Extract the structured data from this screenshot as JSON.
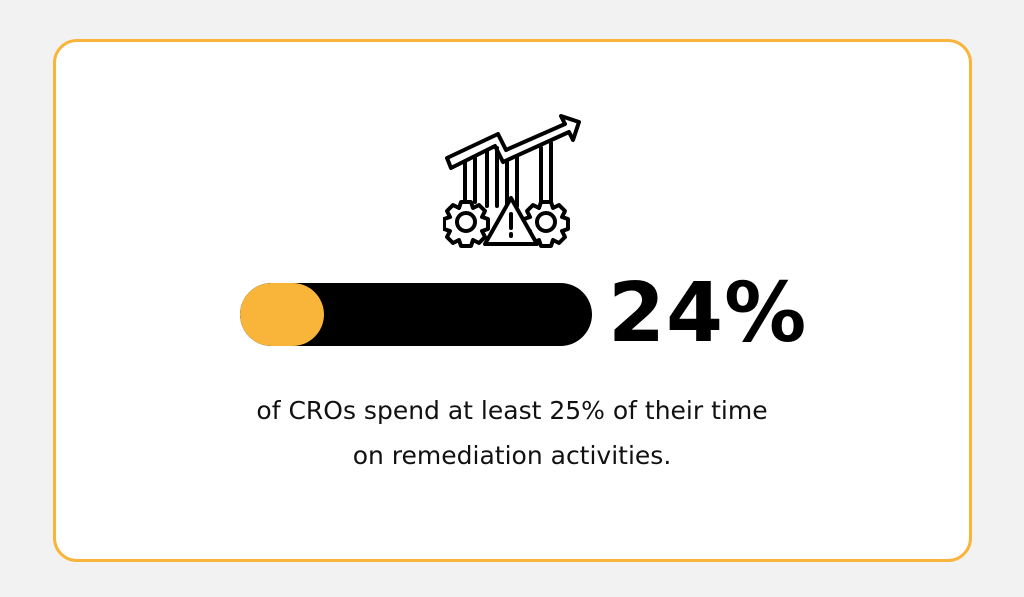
{
  "stat": {
    "value_label": "24%",
    "progress_percent": 24,
    "caption_line1": "of CROs spend at least 25% of their time",
    "caption_line2": "on remediation activities."
  },
  "icon": "growth-chart-gears-warning-icon",
  "colors": {
    "accent": "#f9b43a",
    "bar": "#000000",
    "background": "#f2f2f2",
    "card": "#ffffff"
  }
}
